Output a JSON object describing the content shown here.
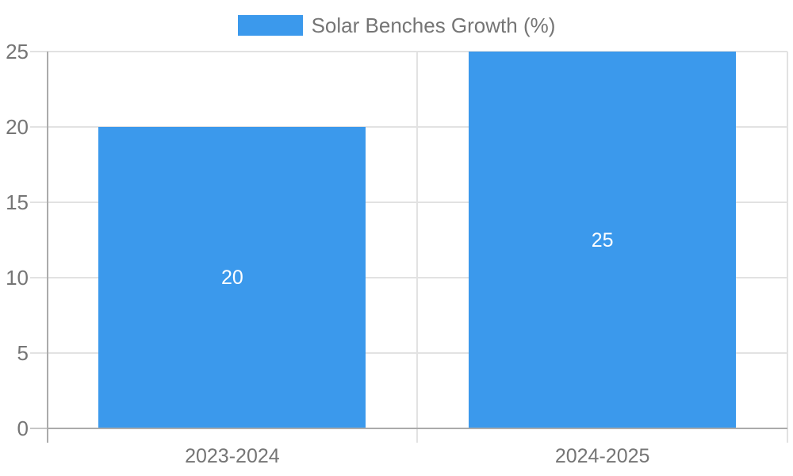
{
  "chart_data": {
    "type": "bar",
    "title": "",
    "legend": {
      "label": "Solar Benches Growth (%)",
      "position": "top"
    },
    "categories": [
      "2023-2024",
      "2024-2025"
    ],
    "series": [
      {
        "name": "Solar Benches Growth (%)",
        "values": [
          20,
          25
        ],
        "color": "#3B99EC"
      }
    ],
    "value_labels": [
      "20",
      "25"
    ],
    "xlabel": "",
    "ylabel": "",
    "ylim": [
      0,
      25
    ],
    "yticks": [
      0,
      5,
      10,
      15,
      20,
      25
    ],
    "grid": true
  },
  "colors": {
    "bar": "#3B99EC",
    "gridline": "#E2E2E2",
    "axis": "#ABABAB",
    "baseline": "#ABABAB",
    "baseline_tick": "#C6C6C6",
    "tick_text": "#757575",
    "value_label_text": "#FFFFFF",
    "background": "#FFFFFF"
  }
}
